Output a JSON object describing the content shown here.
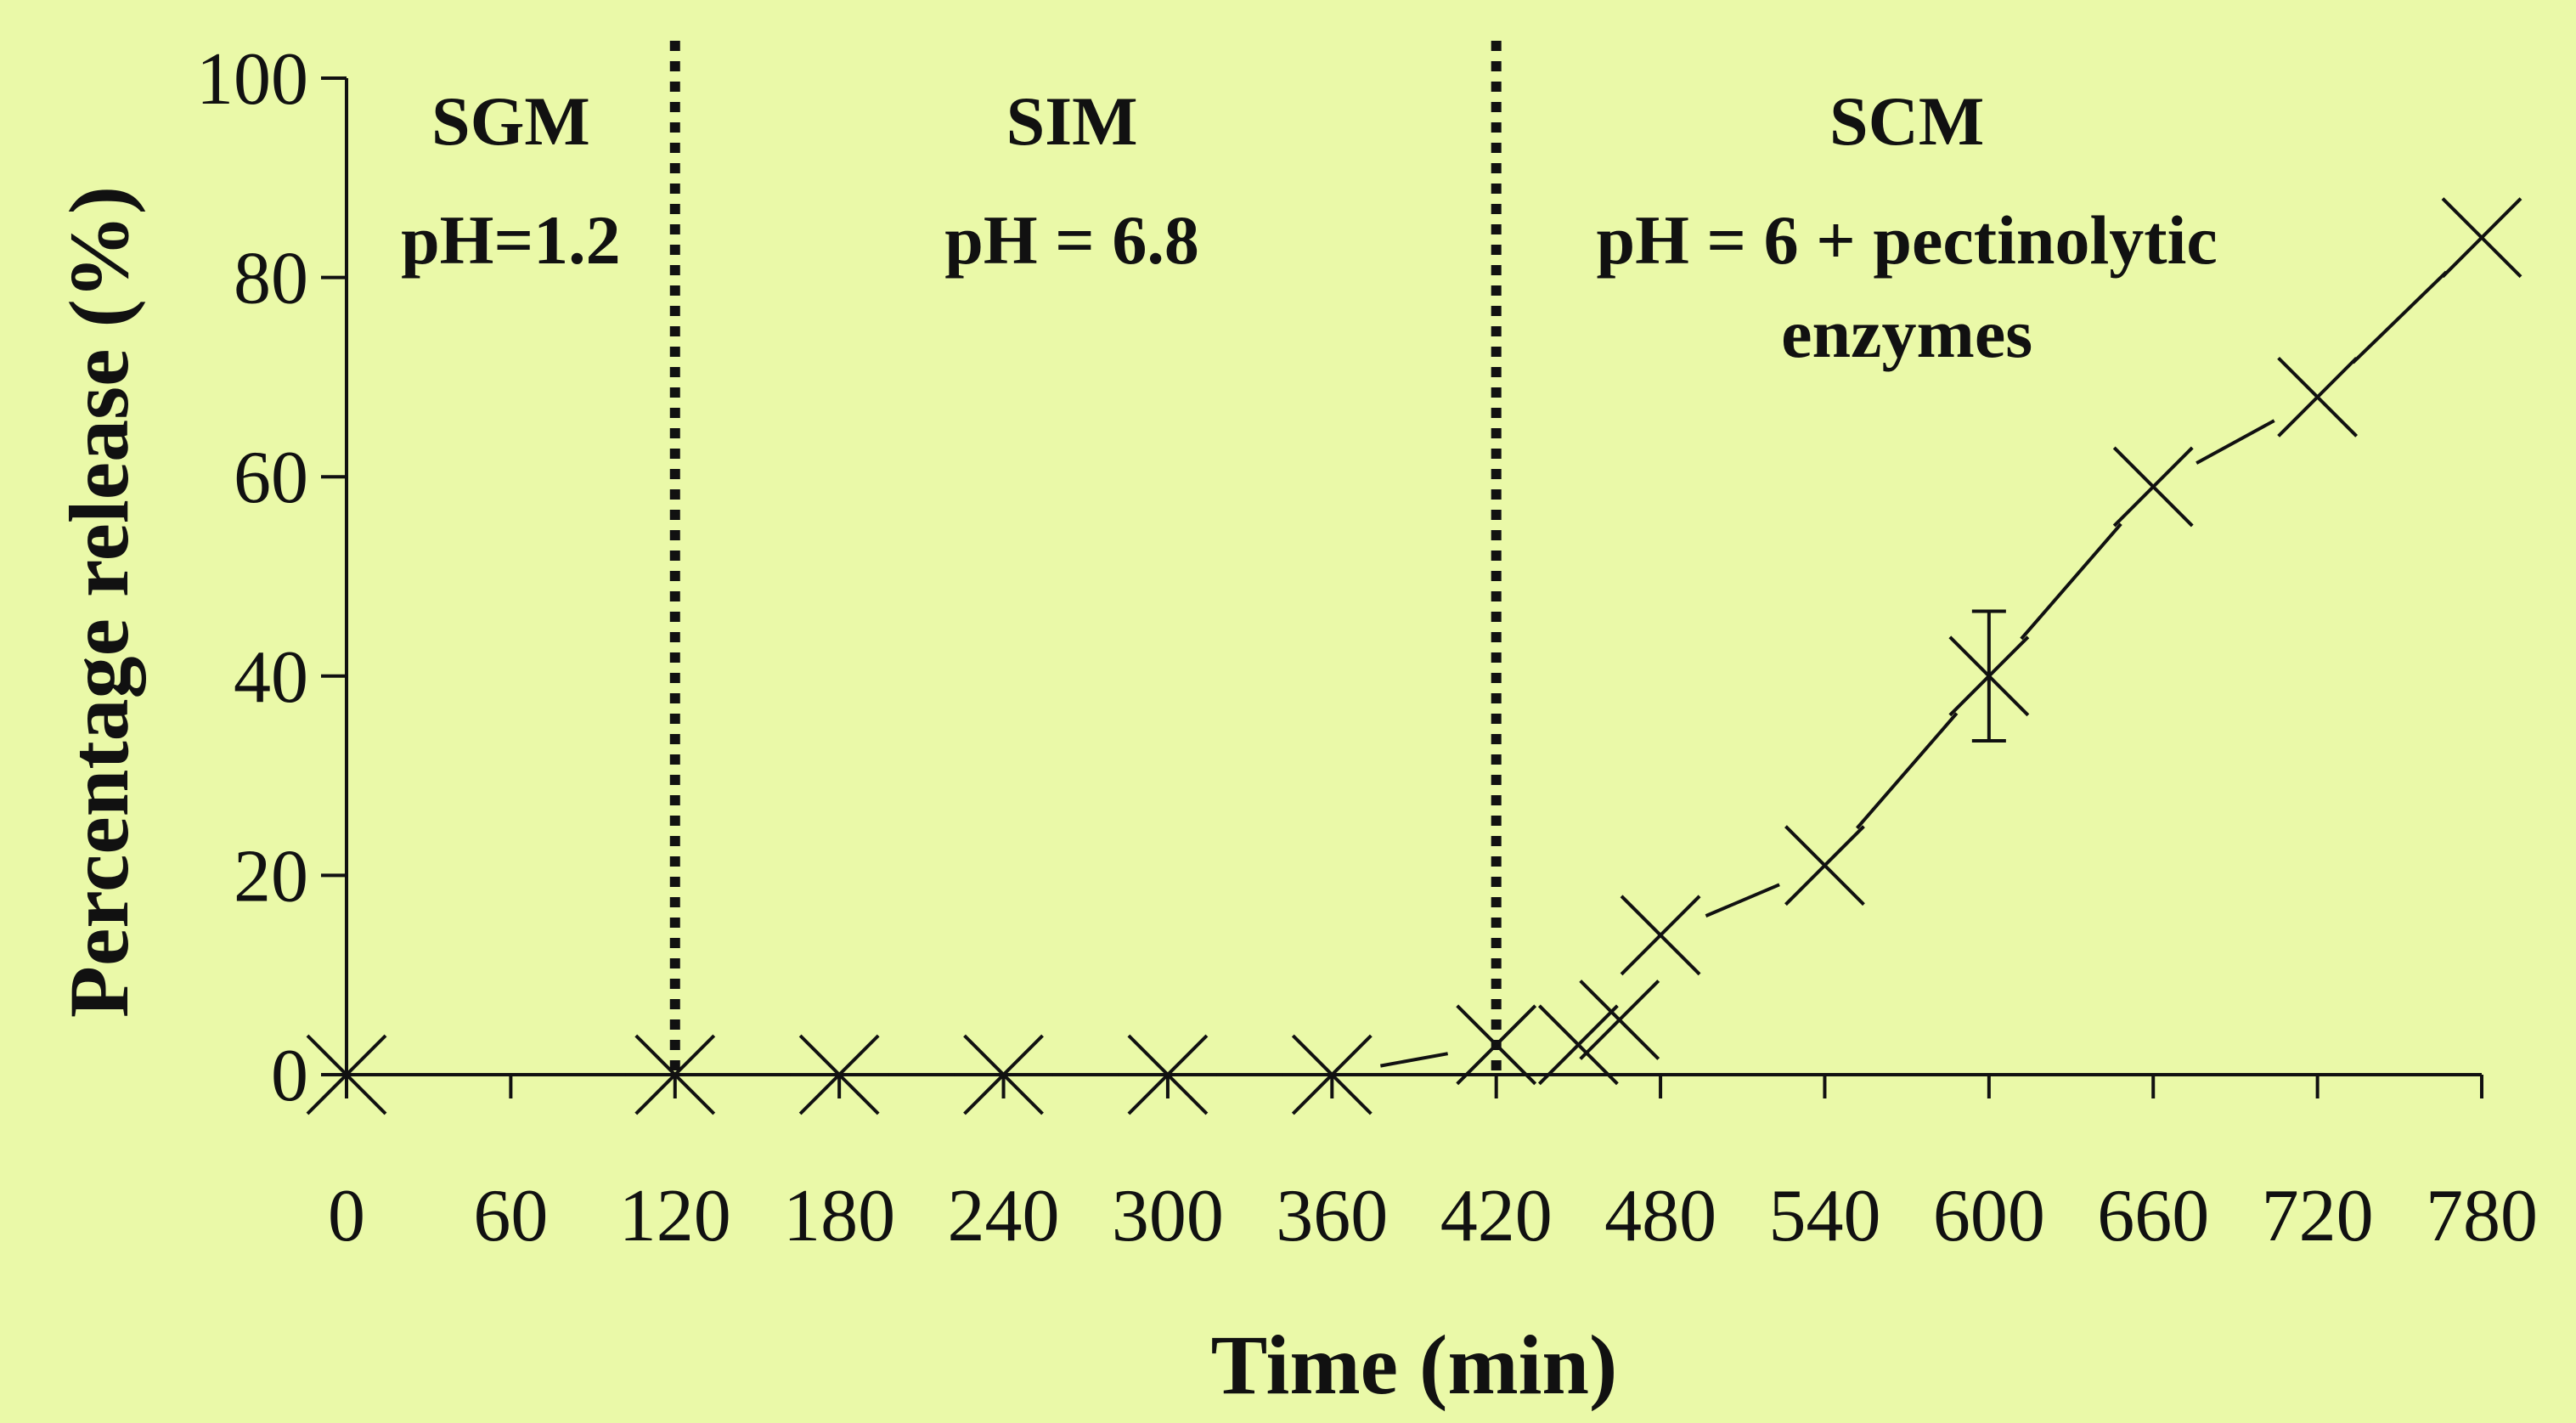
{
  "colors": {
    "background": "#eaf9a8",
    "ink": "#111111"
  },
  "chart_data": {
    "type": "line",
    "title": "",
    "xlabel": "Time (min)",
    "ylabel": "Percentage release (%)",
    "xlim": [
      0,
      780
    ],
    "ylim": [
      0,
      100
    ],
    "x_ticks": [
      0,
      60,
      120,
      180,
      240,
      300,
      360,
      420,
      480,
      540,
      600,
      660,
      720,
      780
    ],
    "y_ticks": [
      0,
      20,
      40,
      60,
      80,
      100
    ],
    "grid": false,
    "legend": "none",
    "marker": "x",
    "series": [
      {
        "x": [
          0,
          120,
          180,
          240,
          300,
          360,
          420,
          450,
          465,
          480,
          540,
          600,
          660,
          720,
          780
        ],
        "y": [
          0,
          0,
          0,
          0,
          0,
          0,
          3,
          3,
          5.5,
          14,
          21,
          40,
          59,
          68,
          84
        ],
        "error": [
          0,
          0,
          0,
          0,
          0,
          0,
          0,
          0,
          0,
          0,
          0,
          6.5,
          0,
          0,
          0
        ]
      }
    ],
    "boundaries": [
      120,
      420
    ],
    "regions": [
      {
        "x_center": 60,
        "lines": [
          "SGM",
          "pH=1.2"
        ]
      },
      {
        "x_center": 265,
        "lines": [
          "SIM",
          "pH = 6.8"
        ]
      },
      {
        "x_center": 570,
        "lines": [
          "SCM",
          "pH = 6 + pectinolytic",
          "enzymes"
        ]
      }
    ]
  }
}
